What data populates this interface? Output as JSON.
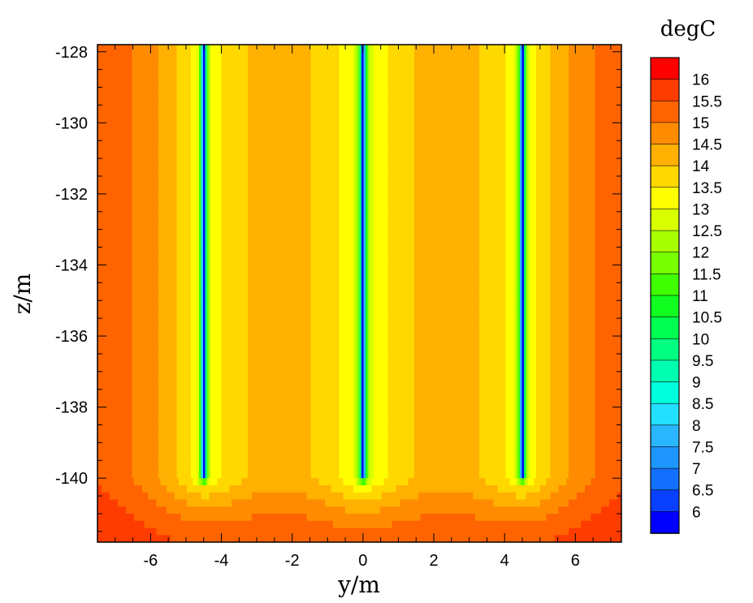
{
  "chart_data": {
    "type": "heatmap",
    "title": "",
    "xlabel": "y/m",
    "ylabel": "z/m",
    "xlim": [
      -7.5,
      7.3
    ],
    "ylim": [
      -141.8,
      -127.8
    ],
    "x_ticks": [
      -6,
      -4,
      -2,
      0,
      2,
      4,
      6
    ],
    "x_tick_labels": [
      "-6",
      "-4",
      "-2",
      "0",
      "2",
      "4",
      "6"
    ],
    "y_ticks": [
      -128,
      -130,
      -132,
      -134,
      -136,
      -138,
      -140
    ],
    "y_tick_labels": [
      "-128",
      "-130",
      "-132",
      "-134",
      "-136",
      "-138",
      "-140"
    ],
    "colorbar": {
      "title": "degC",
      "levels": [
        6,
        6.5,
        7,
        7.5,
        8,
        8.5,
        9,
        9.5,
        10,
        10.5,
        11,
        11.5,
        12,
        12.5,
        13,
        13.5,
        14,
        14.5,
        15,
        15.5,
        16
      ],
      "labels": [
        "6",
        "6.5",
        "7",
        "7.5",
        "8",
        "8.5",
        "9",
        "9.5",
        "10",
        "10.5",
        "11",
        "11.5",
        "12",
        "12.5",
        "13",
        "13.5",
        "14",
        "14.5",
        "15",
        "15.5",
        "16"
      ],
      "colors": [
        "#0000ff",
        "#0a40ff",
        "#1370ff",
        "#1f96ff",
        "#2ab6ff",
        "#22e0ff",
        "#00ffdc",
        "#00ffb0",
        "#00ff80",
        "#00ff50",
        "#10ff20",
        "#40ff00",
        "#78ff00",
        "#a8ff00",
        "#d8ff00",
        "#ffff00",
        "#ffd800",
        "#ffb000",
        "#ff8c00",
        "#ff6400",
        "#ff3c00",
        "#ff0000"
      ]
    },
    "sources": {
      "y_positions": [
        -4.5,
        0,
        4.5
      ],
      "z_bottom": -140,
      "min_temperature": 6
    },
    "background_temperature": 16.2
  }
}
